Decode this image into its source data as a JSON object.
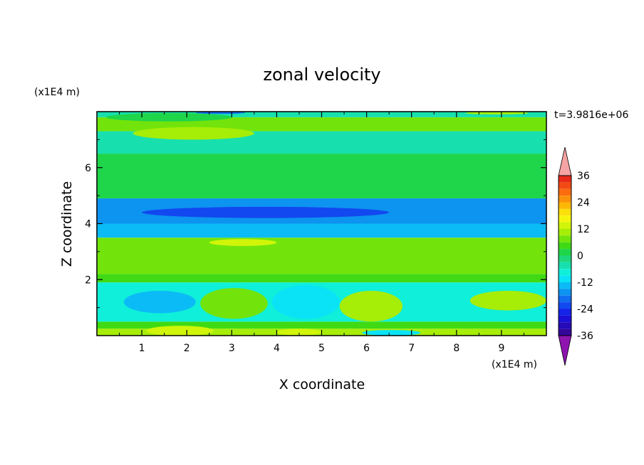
{
  "chart_data": {
    "type": "heatmap",
    "title": "zonal velocity",
    "xlabel": "X coordinate",
    "ylabel": "Z coordinate",
    "x_unit": "(x1E4 m)",
    "y_unit": "(x1E4 m)",
    "time_label": "t=3.9816e+06",
    "xlim": [
      0,
      10
    ],
    "ylim": [
      0,
      8
    ],
    "x_ticks": [
      1,
      2,
      3,
      4,
      5,
      6,
      7,
      8,
      9
    ],
    "y_ticks": [
      2,
      4,
      6
    ],
    "colorbar": {
      "labels": [
        "36",
        "24",
        "12",
        "0",
        "-12",
        "-24",
        "-36"
      ],
      "levels": [
        36,
        24,
        12,
        0,
        -12,
        -24,
        -36
      ],
      "colors_top_to_bottom": [
        "#e82a19",
        "#f24a14",
        "#fb6c0f",
        "#fb920b",
        "#fdb807",
        "#fce00b",
        "#f4f50e",
        "#d0f508",
        "#a6ed08",
        "#72e40b",
        "#3fda14",
        "#1fd54a",
        "#1ed77d",
        "#17e0ae",
        "#0fefd9",
        "#0ae3f6",
        "#0bbbf5",
        "#0d93f0",
        "#116df0",
        "#1248ef",
        "#1522e8",
        "#1c0fd6",
        "#250ab8",
        "#35069a"
      ],
      "over_color": "#f6a3a3",
      "under_color": "#8e14b0"
    },
    "bands": [
      {
        "z": [
          0.0,
          0.25
        ],
        "value": 10
      },
      {
        "z": [
          0.25,
          0.5
        ],
        "value": 6
      },
      {
        "z": [
          0.5,
          1.9
        ],
        "value": -6
      },
      {
        "z": [
          1.9,
          2.2
        ],
        "value": 4
      },
      {
        "z": [
          2.2,
          3.5
        ],
        "value": 9
      },
      {
        "z": [
          3.5,
          4.0
        ],
        "value": -12
      },
      {
        "z": [
          4.0,
          4.9
        ],
        "value": -17
      },
      {
        "z": [
          4.9,
          6.5
        ],
        "value": 1
      },
      {
        "z": [
          6.5,
          7.3
        ],
        "value": -3
      },
      {
        "z": [
          7.3,
          7.8
        ],
        "value": 7
      },
      {
        "z": [
          7.8,
          8.0
        ],
        "value": -4
      }
    ],
    "features": [
      {
        "x": [
          0.8,
          3.5
        ],
        "z": [
          7.0,
          7.45
        ],
        "value": 10
      },
      {
        "x": [
          0.2,
          3.0
        ],
        "z": [
          7.65,
          7.95
        ],
        "value": 3
      },
      {
        "x": [
          2.2,
          3.3
        ],
        "z": [
          7.92,
          8.0
        ],
        "value": -20
      },
      {
        "x": [
          8.2,
          9.6
        ],
        "z": [
          7.9,
          8.0
        ],
        "value": 10
      },
      {
        "x": [
          1.0,
          6.5
        ],
        "z": [
          4.2,
          4.6
        ],
        "value": -22
      },
      {
        "x": [
          2.5,
          4.0
        ],
        "z": [
          3.2,
          3.45
        ],
        "value": 13
      },
      {
        "x": [
          0.6,
          2.2
        ],
        "z": [
          0.8,
          1.6
        ],
        "value": -12
      },
      {
        "x": [
          2.3,
          3.8
        ],
        "z": [
          0.6,
          1.7
        ],
        "value": 9
      },
      {
        "x": [
          3.9,
          5.4
        ],
        "z": [
          0.6,
          1.8
        ],
        "value": -9
      },
      {
        "x": [
          5.4,
          6.8
        ],
        "z": [
          0.5,
          1.6
        ],
        "value": 10
      },
      {
        "x": [
          8.3,
          10.0
        ],
        "z": [
          0.9,
          1.6
        ],
        "value": 12
      },
      {
        "x": [
          1.1,
          2.6
        ],
        "z": [
          0.0,
          0.35
        ],
        "value": 14
      },
      {
        "x": [
          4.0,
          5.0
        ],
        "z": [
          0.0,
          0.25
        ],
        "value": 13
      },
      {
        "x": [
          5.9,
          7.2
        ],
        "z": [
          0.0,
          0.2
        ],
        "value": -9
      }
    ]
  }
}
